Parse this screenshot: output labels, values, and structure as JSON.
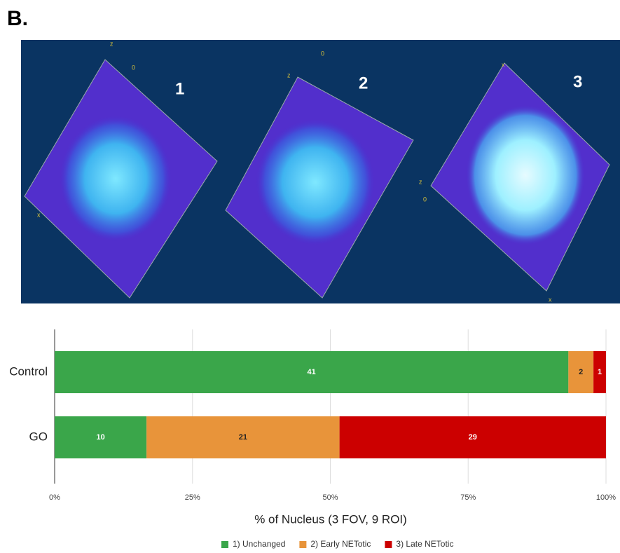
{
  "panel_label": "B.",
  "images": [
    {
      "label": "1",
      "annotations": [
        "z",
        "0",
        "x"
      ]
    },
    {
      "label": "2",
      "annotations": [
        "z",
        "0"
      ]
    },
    {
      "label": "3",
      "annotations": [
        "x",
        "z",
        "0",
        "x"
      ]
    }
  ],
  "chart_data": {
    "type": "bar",
    "orientation": "horizontal",
    "stacking": "percent",
    "categories": [
      "Control",
      "GO"
    ],
    "series": [
      {
        "name": "1) Unchanged",
        "color": "#3aa64a",
        "values": [
          41,
          10
        ]
      },
      {
        "name": "2) Early NETotic",
        "color": "#e8943a",
        "values": [
          2,
          21
        ]
      },
      {
        "name": "3) Late NETotic",
        "color": "#cc0000",
        "values": [
          1,
          29
        ]
      }
    ],
    "xlim": [
      0,
      100
    ],
    "xticks": [
      {
        "value": 0,
        "label": "0%"
      },
      {
        "value": 25,
        "label": "25%"
      },
      {
        "value": 50,
        "label": "50%"
      },
      {
        "value": 75,
        "label": "75%"
      },
      {
        "value": 100,
        "label": "100%"
      }
    ],
    "xlabel": "% of Nucleus (3 FOV, 9 ROI)",
    "grid": true,
    "legend": "bottom"
  }
}
